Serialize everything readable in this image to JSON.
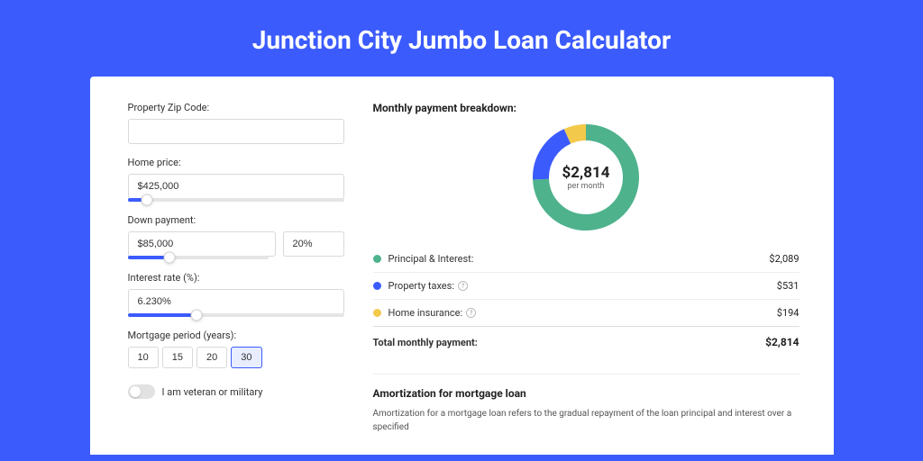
{
  "page": {
    "title": "Junction City Jumbo Loan Calculator",
    "background_color": "#3b5bfd"
  },
  "form": {
    "zip": {
      "label": "Property Zip Code:",
      "value": ""
    },
    "home_price": {
      "label": "Home price:",
      "value": "$425,000",
      "slider_pct": 9
    },
    "down_payment": {
      "label": "Down payment:",
      "value": "$85,000",
      "pct_value": "20%",
      "slider_pct": 30
    },
    "interest_rate": {
      "label": "Interest rate (%):",
      "value": "6.230%",
      "slider_pct": 32
    },
    "mortgage_period": {
      "label": "Mortgage period (years):",
      "options": [
        "10",
        "15",
        "20",
        "30"
      ],
      "selected": "30"
    },
    "veteran": {
      "label": "I am veteran or military",
      "checked": false
    }
  },
  "breakdown": {
    "title": "Monthly payment breakdown:",
    "donut": {
      "amount": "$2,814",
      "sub": "per month",
      "slices": [
        {
          "pct": 74.2,
          "color": "#4eb28d"
        },
        {
          "pct": 18.9,
          "color": "#3b5bfd"
        },
        {
          "pct": 6.9,
          "color": "#f3c94b"
        }
      ],
      "stroke_width": 18
    },
    "items": [
      {
        "color": "#4eb28d",
        "label": "Principal & Interest:",
        "value": "$2,089",
        "info": false
      },
      {
        "color": "#3b5bfd",
        "label": "Property taxes:",
        "value": "$531",
        "info": true
      },
      {
        "color": "#f3c94b",
        "label": "Home insurance:",
        "value": "$194",
        "info": true
      }
    ],
    "total": {
      "label": "Total monthly payment:",
      "value": "$2,814"
    }
  },
  "amortization": {
    "title": "Amortization for mortgage loan",
    "text": "Amortization for a mortgage loan refers to the gradual repayment of the loan principal and interest over a specified"
  }
}
